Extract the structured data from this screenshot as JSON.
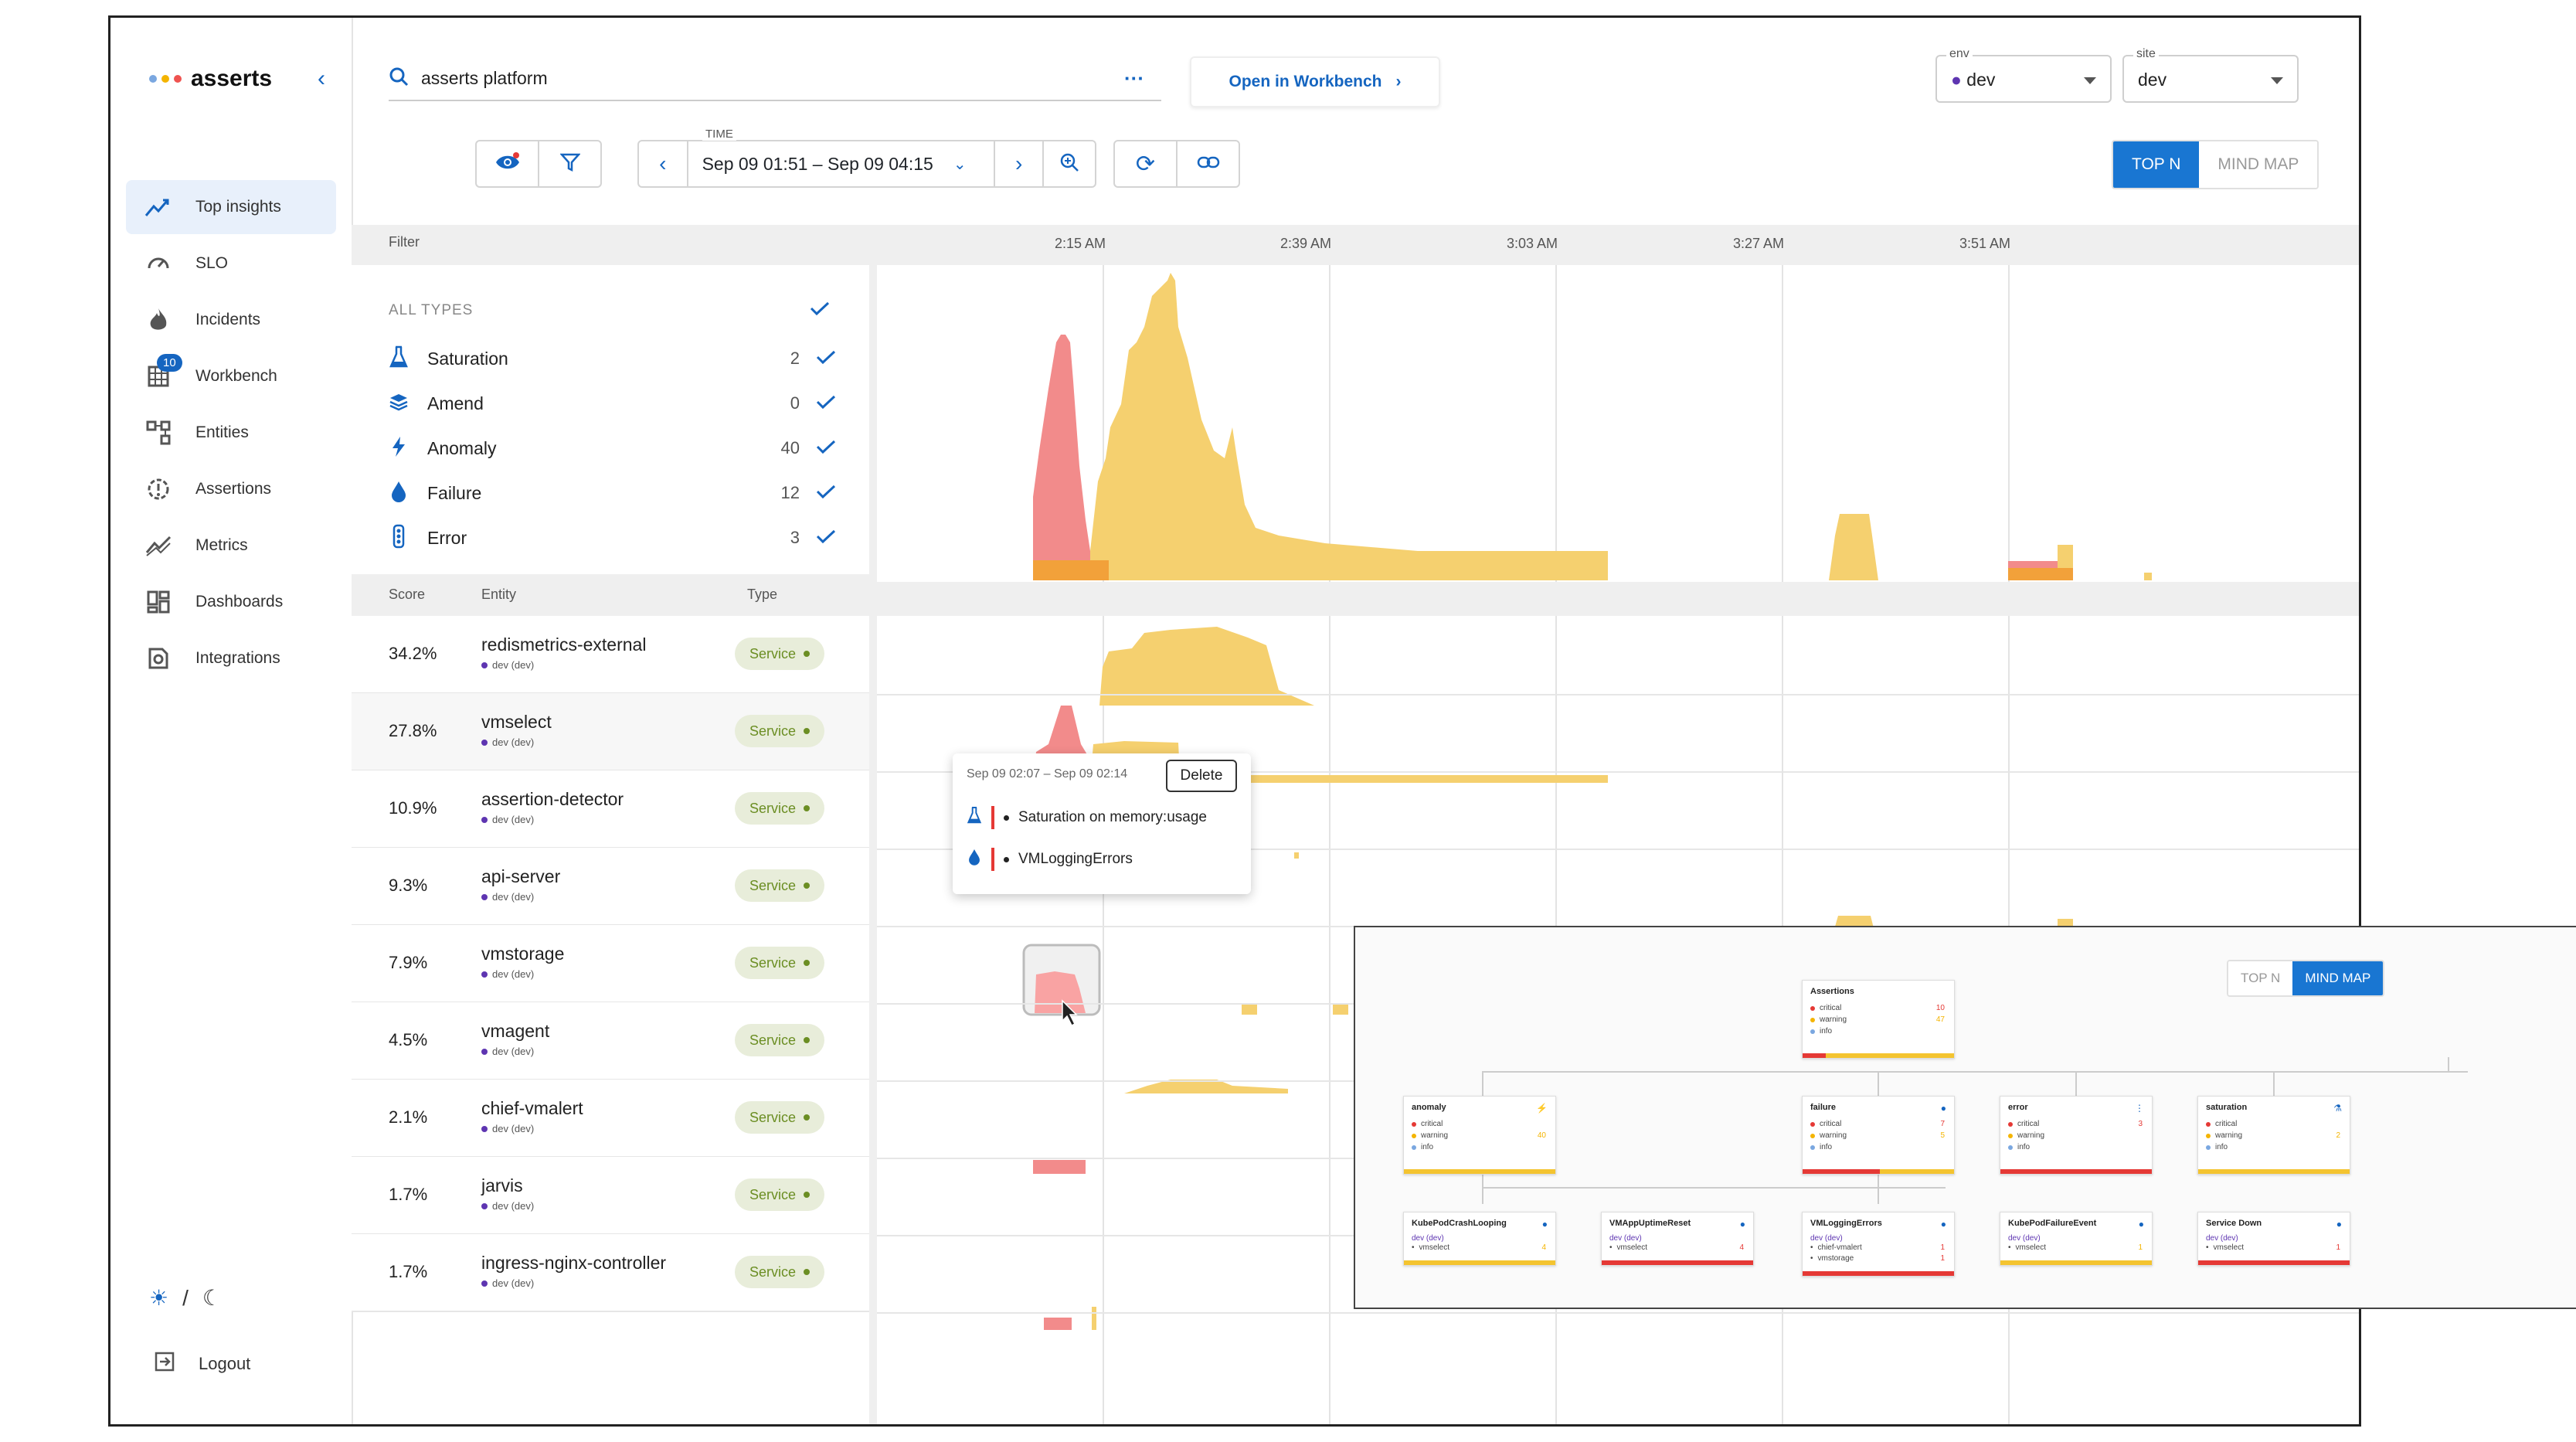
{
  "app": {
    "name": "asserts",
    "logo_dots": [
      "#7aa7e0",
      "#f4b400",
      "#ef5350"
    ]
  },
  "sidebar": {
    "items": [
      {
        "label": "Top insights",
        "icon": "insights-icon",
        "active": true
      },
      {
        "label": "SLO",
        "icon": "gauge-icon"
      },
      {
        "label": "Incidents",
        "icon": "fire-icon"
      },
      {
        "label": "Workbench",
        "icon": "grid-icon",
        "badge": "10"
      },
      {
        "label": "Entities",
        "icon": "entities-icon"
      },
      {
        "label": "Assertions",
        "icon": "alert-circle-icon"
      },
      {
        "label": "Metrics",
        "icon": "metrics-icon"
      },
      {
        "label": "Dashboards",
        "icon": "dashboards-icon"
      },
      {
        "label": "Integrations",
        "icon": "integrations-icon"
      }
    ],
    "theme_separator": "/",
    "logout": "Logout"
  },
  "header": {
    "search_value": "asserts platform",
    "more": "···",
    "open_workbench": "Open in Workbench",
    "env": {
      "label": "env",
      "value": "dev"
    },
    "site": {
      "label": "site",
      "value": "dev"
    },
    "time_label": "TIME",
    "time_range": "Sep 09 01:51 – Sep 09 04:15",
    "view_top_n": "TOP N",
    "view_mind_map": "MIND MAP"
  },
  "filter": {
    "title": "Filter",
    "all_types": "ALL TYPES",
    "types": [
      {
        "label": "Saturation",
        "count": "2",
        "icon": "flask-icon"
      },
      {
        "label": "Amend",
        "count": "0",
        "icon": "layers-icon"
      },
      {
        "label": "Anomaly",
        "count": "40",
        "icon": "bolt-icon"
      },
      {
        "label": "Failure",
        "count": "12",
        "icon": "drop-icon"
      },
      {
        "label": "Error",
        "count": "3",
        "icon": "traffic-light-icon"
      }
    ]
  },
  "timeline": {
    "ticks": [
      "2:15 AM",
      "2:39 AM",
      "3:03 AM",
      "3:27 AM",
      "3:51 AM"
    ]
  },
  "table": {
    "headers": {
      "score": "Score",
      "entity": "Entity",
      "type": "Type"
    },
    "rows": [
      {
        "score": "34.2%",
        "entity": "redismetrics-external",
        "sub": "dev (dev)",
        "type": "Service"
      },
      {
        "score": "27.8%",
        "entity": "vmselect",
        "sub": "dev (dev)",
        "type": "Service"
      },
      {
        "score": "10.9%",
        "entity": "assertion-detector",
        "sub": "dev (dev)",
        "type": "Service"
      },
      {
        "score": "9.3%",
        "entity": "api-server",
        "sub": "dev (dev)",
        "type": "Service"
      },
      {
        "score": "7.9%",
        "entity": "vmstorage",
        "sub": "dev (dev)",
        "type": "Service"
      },
      {
        "score": "4.5%",
        "entity": "vmagent",
        "sub": "dev (dev)",
        "type": "Service"
      },
      {
        "score": "2.1%",
        "entity": "chief-vmalert",
        "sub": "dev (dev)",
        "type": "Service"
      },
      {
        "score": "1.7%",
        "entity": "jarvis",
        "sub": "dev (dev)",
        "type": "Service"
      },
      {
        "score": "1.7%",
        "entity": "ingress-nginx-controller",
        "sub": "dev (dev)",
        "type": "Service"
      }
    ]
  },
  "popup": {
    "range": "Sep 09 02:07 – Sep 09 02:14",
    "delete": "Delete",
    "items": [
      "Saturation on memory:usage",
      "VMLoggingErrors"
    ]
  },
  "mindmap": {
    "top_n": "TOP N",
    "mind_map": "MIND MAP",
    "root": {
      "title": "Assertions",
      "rows": [
        [
          "critical",
          "10"
        ],
        [
          "warning",
          "47"
        ],
        [
          "info",
          ""
        ]
      ]
    },
    "level1": [
      {
        "title": "anomaly",
        "rows": [
          [
            "critical",
            ""
          ],
          [
            "warning",
            "40"
          ],
          [
            "info",
            ""
          ]
        ]
      },
      {
        "title": "failure",
        "rows": [
          [
            "critical",
            "7"
          ],
          [
            "warning",
            "5"
          ],
          [
            "info",
            ""
          ]
        ]
      },
      {
        "title": "error",
        "rows": [
          [
            "critical",
            "3"
          ],
          [
            "warning",
            ""
          ],
          [
            "info",
            ""
          ]
        ]
      },
      {
        "title": "saturation",
        "rows": [
          [
            "critical",
            ""
          ],
          [
            "warning",
            "2"
          ],
          [
            "info",
            ""
          ]
        ]
      }
    ],
    "level2": [
      {
        "title": "KubePodCrashLooping",
        "sub": "dev (dev)",
        "items": [
          [
            "vmselect",
            "4"
          ]
        ]
      },
      {
        "title": "VMAppUptimeReset",
        "sub": "dev (dev)",
        "items": [
          [
            "vmselect",
            "4"
          ]
        ]
      },
      {
        "title": "VMLoggingErrors",
        "sub": "dev (dev)",
        "items": [
          [
            "chief-vmalert",
            "1"
          ],
          [
            "vmstorage",
            "1"
          ]
        ]
      },
      {
        "title": "KubePodFailureEvent",
        "sub": "dev (dev)",
        "items": [
          [
            "vmselect",
            "1"
          ]
        ]
      },
      {
        "title": "Service Down",
        "sub": "dev (dev)",
        "items": [
          [
            "vmselect",
            "1"
          ]
        ]
      }
    ]
  },
  "colors": {
    "accent": "#1976d2",
    "warning": "#f5d06f",
    "critical": "#f28b8b",
    "overlap": "#f2a13a",
    "service_pill": "#e8edda"
  }
}
